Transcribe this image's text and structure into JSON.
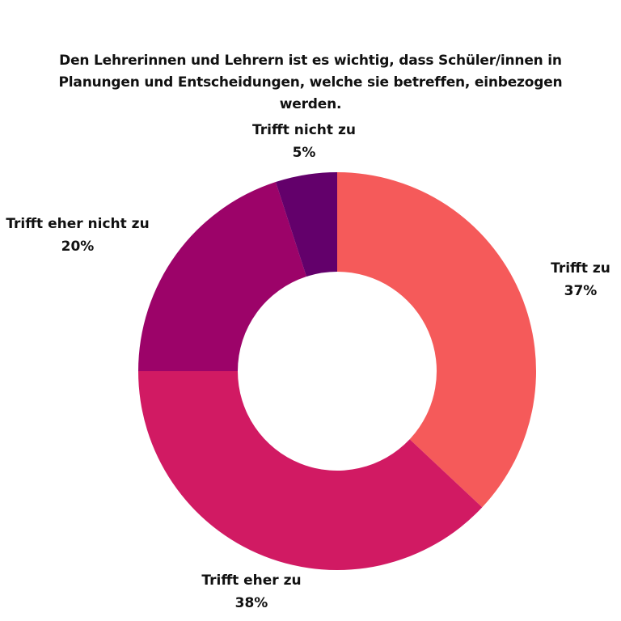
{
  "chart_data": {
    "type": "pie",
    "variant": "donut",
    "title": "Den Lehrerinnen und Lehrern ist es wichtig, dass Schüler/innen in Planungen und Entscheidungen, welche sie betreffen, einbezogen werden.",
    "categories": [
      "Trifft zu",
      "Trifft eher zu",
      "Trifft eher nicht zu",
      "Trifft nicht zu"
    ],
    "values": [
      37,
      38,
      20,
      5
    ],
    "value_labels": [
      "37%",
      "38%",
      "20%",
      "5%"
    ],
    "colors": [
      "#F55A5A",
      "#D11A63",
      "#9C0369",
      "#63006B"
    ],
    "legend": "none"
  }
}
